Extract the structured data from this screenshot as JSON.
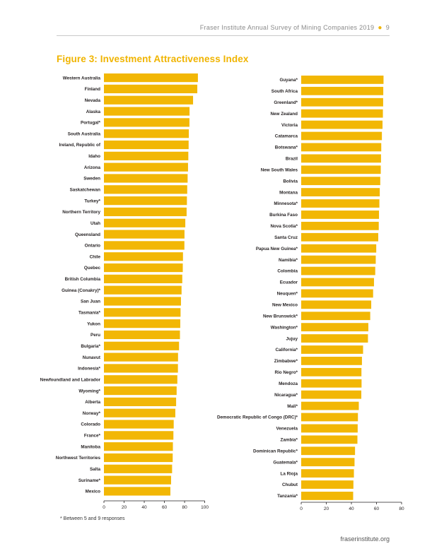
{
  "header": {
    "running_title": "Fraser Institute Annual Survey of Mining Companies 2019",
    "page_number": "9"
  },
  "figure_title": "Figure 3: Investment Attractiveness Index",
  "footnote": "* Between 5 and 9 responses",
  "site": "fraserinstitute.org",
  "colors": {
    "bar": "#f2b705",
    "accent": "#f0b400",
    "axis": "#231f20"
  },
  "chart_data": [
    {
      "type": "bar",
      "orientation": "horizontal",
      "title": "Investment Attractiveness Index",
      "xlim": [
        0,
        100
      ],
      "xticks": [
        0,
        20,
        40,
        60,
        80,
        100
      ],
      "categories": [
        "Western Australia",
        "Finland",
        "Nevada",
        "Alaska",
        "Portugal*",
        "South Australia",
        "Ireland, Republic of",
        "Idaho",
        "Arizona",
        "Sweden",
        "Saskatchewan",
        "Turkey*",
        "Northern Territory",
        "Utah",
        "Queensland",
        "Ontario",
        "Chile",
        "Quebec",
        "British Columbia",
        "Guinea (Conakry)*",
        "San Juan",
        "Tasmania*",
        "Yukon",
        "Peru",
        "Bulgaria*",
        "Nunavut",
        "Indonesia*",
        "Newfoundland and Labrador",
        "Wyoming*",
        "Alberta",
        "Norway*",
        "Colorado",
        "France*",
        "Manitoba",
        "Northwest Territories",
        "Salta",
        "Suriname*",
        "Mexico"
      ],
      "values": [
        93.2,
        92.6,
        88.4,
        84.9,
        84.8,
        84.2,
        84.0,
        83.7,
        83.4,
        83.0,
        82.6,
        82.3,
        82.0,
        80.7,
        79.9,
        79.8,
        78.4,
        78.2,
        77.7,
        77.0,
        76.4,
        76.0,
        75.7,
        75.4,
        74.5,
        73.5,
        73.4,
        72.8,
        72.1,
        71.6,
        70.8,
        69.2,
        68.9,
        68.4,
        68.2,
        67.6,
        66.6,
        65.9
      ]
    },
    {
      "type": "bar",
      "orientation": "horizontal",
      "title": "Investment Attractiveness Index",
      "xlim": [
        0,
        80
      ],
      "xticks": [
        0,
        20,
        40,
        60,
        80
      ],
      "categories": [
        "Guyana*",
        "South Africa",
        "Greenland*",
        "New Zealand",
        "Victoria",
        "Catamarca",
        "Botswana*",
        "Brazil",
        "New South Wales",
        "Bolivia",
        "Montana",
        "Minnesota*",
        "Burkina Faso",
        "Nova Scotia*",
        "Santa Cruz",
        "Papua New Guinea*",
        "Namibia*",
        "Colombia",
        "Ecuador",
        "Neuquen*",
        "New Mexico",
        "New Brunswick*",
        "Washington*",
        "Jujuy",
        "California*",
        "Zimbabwe*",
        "Rio Negro*",
        "Mendoza",
        "Nicaragua*",
        "Mali*",
        "Democratic Republic of Congo (DRC)*",
        "Venezuela",
        "Zambia*",
        "Dominican Republic*",
        "Guatemala*",
        "La Rioja",
        "Chubut",
        "Tanzania*"
      ],
      "values": [
        65.6,
        65.4,
        65.3,
        65.1,
        64.8,
        64.3,
        63.8,
        63.6,
        63.4,
        63.0,
        62.6,
        62.3,
        62.0,
        61.8,
        61.4,
        59.8,
        59.4,
        59.0,
        58.0,
        57.3,
        55.8,
        55.0,
        53.5,
        53.2,
        49.3,
        48.4,
        48.0,
        48.1,
        47.9,
        45.9,
        45.2,
        45.0,
        44.8,
        42.9,
        42.5,
        42.0,
        41.6,
        41.4
      ]
    }
  ]
}
